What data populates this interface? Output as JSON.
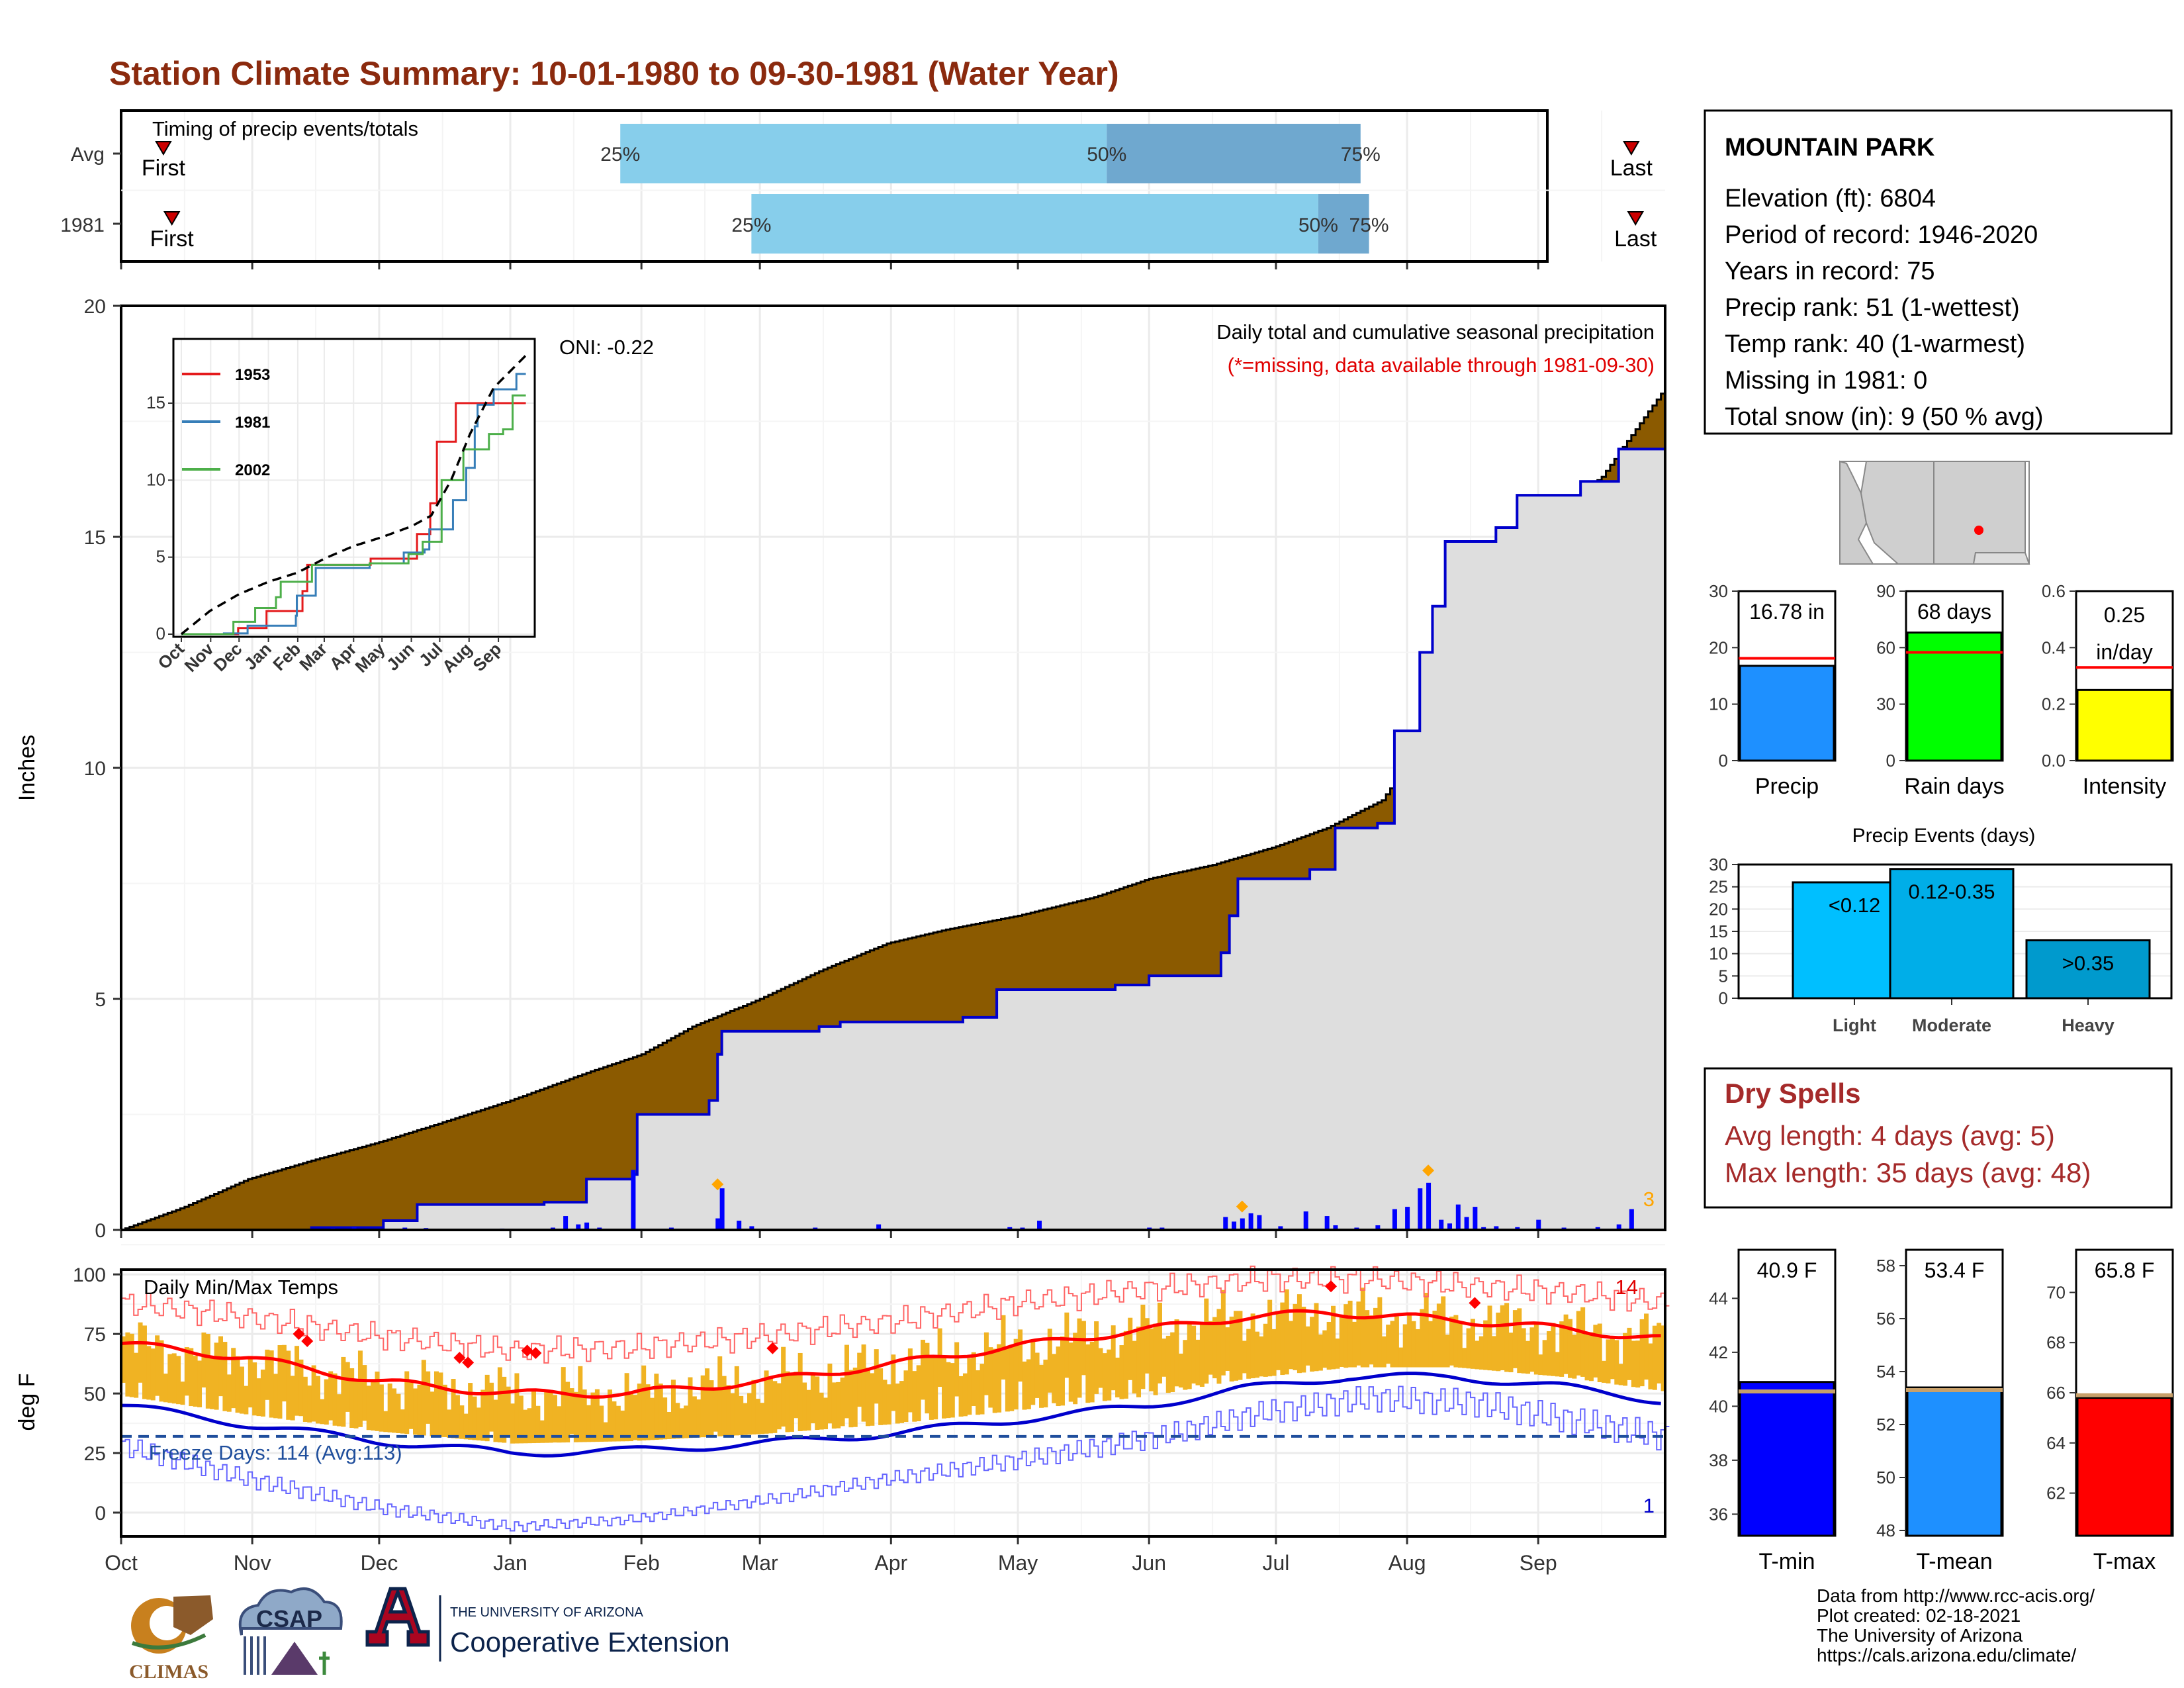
{
  "title": "Station Climate Summary: 10-01-1980 to 09-30-1981 (Water Year)",
  "timing": {
    "label": "Timing of precip events/totals",
    "rows": [
      {
        "name": "Avg",
        "first": "First",
        "last": "Last",
        "first_day": 10,
        "last_day": 357,
        "q25": 118,
        "q50": 233,
        "q75": 293
      },
      {
        "name": "1981",
        "first": "First",
        "last": "Last",
        "first_day": 12,
        "last_day": 358,
        "q25": 149,
        "q50": 283,
        "q75": 295
      }
    ],
    "q_labels": [
      "25%",
      "50%",
      "75%"
    ],
    "colors": {
      "light": "#87ceeb",
      "dark": "#6fa8cf",
      "marker": "#cc0000"
    }
  },
  "months": [
    "Oct",
    "Nov",
    "Dec",
    "Jan",
    "Feb",
    "Mar",
    "Apr",
    "May",
    "Jun",
    "Jul",
    "Aug",
    "Sep"
  ],
  "station": {
    "name": "MOUNTAIN PARK",
    "lines": [
      "Elevation (ft): 6804",
      "Period of record: 1946-2020",
      "Years in record: 75",
      "Precip rank: 51 (1-wettest)",
      "Temp rank: 40 (1-warmest)",
      "Missing in 1981: 0",
      "Total snow (in): 9 (50 % avg)"
    ]
  },
  "precip_panel": {
    "ylabel": "Inches",
    "yticks": [
      0,
      5,
      10,
      15,
      20
    ],
    "ylim": [
      0,
      20
    ],
    "header": "Daily total and cumulative seasonal precipitation",
    "missing_note": "(*=missing, data available through 1981-09-30)",
    "oni": "ONI: -0.22",
    "corner_count": "3",
    "avg_cumulative": [
      [
        0,
        0
      ],
      [
        15,
        0.5
      ],
      [
        30,
        1.1
      ],
      [
        45,
        1.5
      ],
      [
        61,
        1.9
      ],
      [
        75,
        2.3
      ],
      [
        92,
        2.8
      ],
      [
        110,
        3.4
      ],
      [
        123,
        3.8
      ],
      [
        135,
        4.4
      ],
      [
        151,
        5.0
      ],
      [
        165,
        5.6
      ],
      [
        181,
        6.2
      ],
      [
        195,
        6.5
      ],
      [
        212,
        6.8
      ],
      [
        230,
        7.2
      ],
      [
        243,
        7.6
      ],
      [
        258,
        7.9
      ],
      [
        273,
        8.3
      ],
      [
        285,
        8.7
      ],
      [
        298,
        9.3
      ],
      [
        305,
        10.2
      ],
      [
        315,
        12.0
      ],
      [
        322,
        13.5
      ],
      [
        335,
        15.2
      ],
      [
        350,
        16.3
      ],
      [
        364,
        18.1
      ]
    ],
    "year_cumulative": [
      [
        0,
        0
      ],
      [
        45,
        0.05
      ],
      [
        62,
        0.2
      ],
      [
        70,
        0.55
      ],
      [
        100,
        0.6
      ],
      [
        110,
        1.1
      ],
      [
        121,
        1.2
      ],
      [
        122,
        2.5
      ],
      [
        139,
        2.8
      ],
      [
        141,
        3.8
      ],
      [
        142,
        4.3
      ],
      [
        165,
        4.4
      ],
      [
        170,
        4.5
      ],
      [
        199,
        4.6
      ],
      [
        207,
        5.2
      ],
      [
        221,
        5.2
      ],
      [
        235,
        5.3
      ],
      [
        243,
        5.5
      ],
      [
        257,
        5.5
      ],
      [
        260,
        6.0
      ],
      [
        262,
        6.8
      ],
      [
        264,
        7.6
      ],
      [
        281,
        7.8
      ],
      [
        287,
        8.7
      ],
      [
        297,
        8.8
      ],
      [
        301,
        10.8
      ],
      [
        307,
        12.5
      ],
      [
        310,
        13.5
      ],
      [
        313,
        14.9
      ],
      [
        325,
        15.2
      ],
      [
        330,
        15.9
      ],
      [
        345,
        16.2
      ],
      [
        354,
        16.9
      ],
      [
        364,
        16.9
      ]
    ],
    "daily_bars": [
      [
        50,
        0.04
      ],
      [
        55,
        0.06
      ],
      [
        58,
        0.03
      ],
      [
        67,
        0.05
      ],
      [
        72,
        0.04
      ],
      [
        90,
        0.03
      ],
      [
        102,
        0.05
      ],
      [
        105,
        0.3
      ],
      [
        108,
        0.12
      ],
      [
        110,
        0.16
      ],
      [
        113,
        0.05
      ],
      [
        121,
        1.3
      ],
      [
        130,
        0.05
      ],
      [
        141,
        0.25
      ],
      [
        142,
        0.9
      ],
      [
        146,
        0.2
      ],
      [
        149,
        0.08
      ],
      [
        164,
        0.05
      ],
      [
        179,
        0.12
      ],
      [
        210,
        0.06
      ],
      [
        213,
        0.05
      ],
      [
        217,
        0.2
      ],
      [
        243,
        0.05
      ],
      [
        246,
        0.05
      ],
      [
        261,
        0.28
      ],
      [
        263,
        0.18
      ],
      [
        265,
        0.25
      ],
      [
        267,
        0.36
      ],
      [
        269,
        0.32
      ],
      [
        274,
        0.08
      ],
      [
        280,
        0.4
      ],
      [
        285,
        0.3
      ],
      [
        287,
        0.1
      ],
      [
        292,
        0.05
      ],
      [
        297,
        0.1
      ],
      [
        301,
        0.45
      ],
      [
        304,
        0.5
      ],
      [
        307,
        0.9
      ],
      [
        309,
        1.02
      ],
      [
        312,
        0.22
      ],
      [
        314,
        0.14
      ],
      [
        316,
        0.55
      ],
      [
        318,
        0.28
      ],
      [
        320,
        0.5
      ],
      [
        322,
        0.06
      ],
      [
        325,
        0.08
      ],
      [
        330,
        0.06
      ],
      [
        335,
        0.22
      ],
      [
        341,
        0.05
      ],
      [
        349,
        0.06
      ],
      [
        354,
        0.12
      ],
      [
        357,
        0.45
      ]
    ],
    "highlight_days": [
      [
        141,
        0.9
      ],
      [
        265,
        0.42
      ],
      [
        309,
        1.2
      ]
    ],
    "colors": {
      "fill_avg": "#8b5a00",
      "fill_year": "#dedede",
      "line_year": "#0000cc",
      "bars": "#0000ff",
      "highlight": "#ffa500"
    }
  },
  "inset": {
    "xticks": [
      "Oct",
      "Nov",
      "Dec",
      "Jan",
      "Feb",
      "Mar",
      "Apr",
      "May",
      "Jun",
      "Jul",
      "Aug",
      "Sep"
    ],
    "yticks": [
      0,
      5,
      10,
      15
    ],
    "ylim": [
      0,
      19
    ],
    "series": [
      {
        "name": "1953",
        "color": "#e41a1c",
        "points": [
          [
            0,
            0
          ],
          [
            60,
            0.4
          ],
          [
            90,
            1.5
          ],
          [
            128,
            2.8
          ],
          [
            133,
            4.5
          ],
          [
            200,
            4.9
          ],
          [
            238,
            4.9
          ],
          [
            249,
            6.5
          ],
          [
            263,
            8.5
          ],
          [
            270,
            12.5
          ],
          [
            290,
            15.0
          ],
          [
            330,
            15.0
          ],
          [
            364,
            15.0
          ]
        ]
      },
      {
        "name": "1981",
        "color": "#377eb8",
        "points": [
          [
            0,
            0
          ],
          [
            45,
            0.05
          ],
          [
            70,
            0.55
          ],
          [
            121,
            1.2
          ],
          [
            122,
            2.5
          ],
          [
            142,
            4.3
          ],
          [
            199,
            4.6
          ],
          [
            235,
            5.3
          ],
          [
            257,
            5.5
          ],
          [
            262,
            6.8
          ],
          [
            287,
            8.7
          ],
          [
            301,
            10.8
          ],
          [
            310,
            13.5
          ],
          [
            313,
            14.9
          ],
          [
            330,
            15.9
          ],
          [
            354,
            16.9
          ],
          [
            364,
            16.9
          ]
        ]
      },
      {
        "name": "2002",
        "color": "#4daf4a",
        "points": [
          [
            0,
            0
          ],
          [
            55,
            0.8
          ],
          [
            78,
            1.7
          ],
          [
            100,
            2.4
          ],
          [
            105,
            3.4
          ],
          [
            138,
            4.5
          ],
          [
            199,
            4.6
          ],
          [
            240,
            5.2
          ],
          [
            255,
            6.0
          ],
          [
            275,
            10.0
          ],
          [
            298,
            12.0
          ],
          [
            325,
            13.0
          ],
          [
            340,
            13.3
          ],
          [
            350,
            15.5
          ],
          [
            364,
            15.5
          ]
        ]
      }
    ],
    "avg_points": [
      [
        0,
        0
      ],
      [
        30,
        1.5
      ],
      [
        61,
        2.6
      ],
      [
        92,
        3.4
      ],
      [
        123,
        4.0
      ],
      [
        151,
        4.9
      ],
      [
        181,
        5.7
      ],
      [
        212,
        6.3
      ],
      [
        243,
        7.0
      ],
      [
        264,
        7.7
      ],
      [
        285,
        10.0
      ],
      [
        305,
        13.0
      ],
      [
        330,
        16.0
      ],
      [
        364,
        18.1
      ]
    ]
  },
  "summary_bars": [
    {
      "label": "Precip",
      "value_label": "16.78 in",
      "value": 16.78,
      "avg": 18.1,
      "ylim": [
        0,
        30
      ],
      "yticks": [
        0,
        10,
        20,
        30
      ],
      "color": "#1e90ff"
    },
    {
      "label": "Rain days",
      "value_label": "68 days",
      "value": 68,
      "avg": 57.5,
      "ylim": [
        0,
        90
      ],
      "yticks": [
        0,
        30,
        60,
        90
      ],
      "color": "#00ff00"
    },
    {
      "label": "Intensity",
      "value_label": "0.25 in/day",
      "value_label_lines": [
        "0.25",
        "in/day"
      ],
      "value": 0.25,
      "avg": 0.33,
      "ylim": [
        0,
        0.6
      ],
      "yticks": [
        0.0,
        0.2,
        0.4,
        0.6
      ],
      "color": "#ffff00"
    }
  ],
  "precip_events": {
    "title": "Precip Events (days)",
    "ylim": [
      0,
      30
    ],
    "yticks": [
      0,
      5,
      10,
      15,
      20,
      25,
      30
    ],
    "bars": [
      {
        "category": "Light",
        "range": "<0.12",
        "value": 26,
        "color": "#00bfff"
      },
      {
        "category": "Moderate",
        "range": "0.12-0.35",
        "value": 29,
        "color": "#00aee8"
      },
      {
        "category": "Heavy",
        "range": ">0.35",
        "value": 13,
        "color": "#009acd"
      }
    ]
  },
  "dry_spells": {
    "title": "Dry Spells",
    "avg_line": "Avg length: 4 days (avg: 5)",
    "max_line": "Max length: 35 days (avg: 48)"
  },
  "temp_panel": {
    "ylabel": "deg F",
    "label": "Daily Min/Max Temps",
    "freeze": "Freeze Days: 114 (Avg:113)",
    "count_high": "14",
    "count_low": "1",
    "yticks": [
      0,
      25,
      50,
      75,
      100
    ],
    "ylim": [
      -10,
      102
    ],
    "freeze_line": 32,
    "avg_max": [
      [
        0,
        71
      ],
      [
        30,
        65
      ],
      [
        61,
        55
      ],
      [
        92,
        50
      ],
      [
        120,
        50
      ],
      [
        151,
        55
      ],
      [
        181,
        62
      ],
      [
        212,
        70
      ],
      [
        243,
        77
      ],
      [
        265,
        82
      ],
      [
        285,
        84
      ],
      [
        305,
        82
      ],
      [
        330,
        79
      ],
      [
        364,
        73
      ]
    ],
    "avg_min": [
      [
        0,
        45
      ],
      [
        30,
        37
      ],
      [
        61,
        30
      ],
      [
        92,
        25
      ],
      [
        120,
        26
      ],
      [
        151,
        29
      ],
      [
        181,
        33
      ],
      [
        212,
        39
      ],
      [
        243,
        45
      ],
      [
        265,
        52
      ],
      [
        290,
        57
      ],
      [
        315,
        57
      ],
      [
        340,
        53
      ],
      [
        364,
        47
      ]
    ],
    "record_max": [
      [
        0,
        88
      ],
      [
        30,
        82
      ],
      [
        61,
        74
      ],
      [
        92,
        68
      ],
      [
        120,
        69
      ],
      [
        151,
        74
      ],
      [
        181,
        80
      ],
      [
        212,
        88
      ],
      [
        243,
        94
      ],
      [
        270,
        98
      ],
      [
        295,
        98
      ],
      [
        320,
        95
      ],
      [
        345,
        92
      ],
      [
        364,
        88
      ]
    ],
    "record_min": [
      [
        0,
        28
      ],
      [
        30,
        14
      ],
      [
        61,
        2
      ],
      [
        92,
        -6
      ],
      [
        120,
        -3
      ],
      [
        151,
        5
      ],
      [
        181,
        14
      ],
      [
        212,
        22
      ],
      [
        243,
        31
      ],
      [
        270,
        42
      ],
      [
        295,
        48
      ],
      [
        320,
        46
      ],
      [
        345,
        38
      ],
      [
        364,
        32
      ]
    ],
    "record_high_days": [
      [
        42,
        75
      ],
      [
        44,
        72
      ],
      [
        80,
        65
      ],
      [
        82,
        63
      ],
      [
        96,
        68
      ],
      [
        98,
        67
      ],
      [
        154,
        69
      ],
      [
        286,
        95
      ],
      [
        320,
        88
      ]
    ],
    "colors": {
      "band": "#f0b323",
      "avg_max": "#ff0000",
      "avg_min": "#0000cc",
      "rec_max": "#ff6666",
      "rec_min": "#6666ff",
      "freeze": "#1f4e9c"
    }
  },
  "temp_bars": [
    {
      "label": "T-min",
      "value_label": "40.9 F",
      "value": 40.9,
      "avg": 40.55,
      "ylim": [
        35.2,
        45.8
      ],
      "yticks": [
        36,
        38,
        40,
        42,
        44
      ],
      "color": "#0000ff"
    },
    {
      "label": "T-mean",
      "value_label": "53.4 F",
      "value": 53.4,
      "avg": 53.3,
      "ylim": [
        47.8,
        58.6
      ],
      "yticks": [
        48,
        50,
        52,
        54,
        56,
        58
      ],
      "color": "#1e90ff"
    },
    {
      "label": "T-max",
      "value_label": "65.8 F",
      "value": 65.8,
      "avg": 65.9,
      "ylim": [
        60.3,
        71.7
      ],
      "yticks": [
        62,
        64,
        66,
        68,
        70
      ],
      "color": "#ff0000"
    }
  ],
  "logos": {
    "climas": "CLIMAS",
    "csap": "CSAP",
    "ua_small": "THE UNIVERSITY OF ARIZONA",
    "ua_big": "Cooperative Extension"
  },
  "footer": [
    "Data from http://www.rcc-acis.org/",
    "Plot created: 02-18-2021",
    "The University of Arizona",
    "https://cals.arizona.edu/climate/"
  ]
}
